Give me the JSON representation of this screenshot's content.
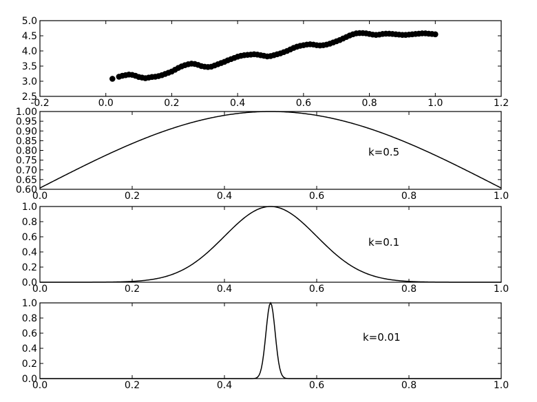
{
  "chart_data": [
    {
      "type": "scatter",
      "xlim": [
        -0.2,
        1.2
      ],
      "ylim": [
        2.5,
        5.0
      ],
      "xticks": [
        "-0.2",
        "0.0",
        "0.2",
        "0.4",
        "0.6",
        "0.8",
        "1.0",
        "1.2"
      ],
      "xtick_values": [
        -0.2,
        0.0,
        0.2,
        0.4,
        0.6,
        0.8,
        1.0,
        1.2
      ],
      "yticks": [
        "2.5",
        "3.0",
        "3.5",
        "4.0",
        "4.5",
        "5.0"
      ],
      "ytick_values": [
        2.5,
        3.0,
        3.5,
        4.0,
        4.5,
        5.0
      ],
      "grid": false,
      "series": [
        {
          "x": [
            0.02,
            0.04,
            0.05,
            0.06,
            0.07,
            0.08,
            0.09,
            0.1,
            0.11,
            0.12,
            0.13,
            0.14,
            0.15,
            0.16,
            0.17,
            0.18,
            0.19,
            0.2,
            0.21,
            0.22,
            0.23,
            0.24,
            0.25,
            0.26,
            0.27,
            0.28,
            0.29,
            0.3,
            0.31,
            0.32,
            0.33,
            0.34,
            0.35,
            0.36,
            0.37,
            0.38,
            0.39,
            0.4,
            0.41,
            0.42,
            0.43,
            0.44,
            0.45,
            0.46,
            0.47,
            0.48,
            0.49,
            0.5,
            0.51,
            0.52,
            0.53,
            0.54,
            0.55,
            0.56,
            0.57,
            0.58,
            0.59,
            0.6,
            0.61,
            0.62,
            0.63,
            0.64,
            0.65,
            0.66,
            0.67,
            0.68,
            0.69,
            0.7,
            0.71,
            0.72,
            0.73,
            0.74,
            0.75,
            0.76,
            0.77,
            0.78,
            0.79,
            0.8,
            0.81,
            0.82,
            0.83,
            0.84,
            0.85,
            0.86,
            0.87,
            0.88,
            0.89,
            0.9,
            0.91,
            0.92,
            0.93,
            0.94,
            0.95,
            0.96,
            0.97,
            0.98,
            0.99,
            1.0
          ],
          "y": [
            3.08,
            3.15,
            3.18,
            3.2,
            3.22,
            3.21,
            3.18,
            3.14,
            3.12,
            3.1,
            3.12,
            3.14,
            3.15,
            3.17,
            3.2,
            3.24,
            3.28,
            3.32,
            3.38,
            3.44,
            3.49,
            3.53,
            3.56,
            3.58,
            3.57,
            3.54,
            3.5,
            3.48,
            3.47,
            3.48,
            3.52,
            3.56,
            3.6,
            3.64,
            3.69,
            3.73,
            3.77,
            3.81,
            3.84,
            3.86,
            3.87,
            3.88,
            3.89,
            3.88,
            3.86,
            3.84,
            3.82,
            3.83,
            3.86,
            3.89,
            3.92,
            3.96,
            4.0,
            4.05,
            4.1,
            4.14,
            4.17,
            4.19,
            4.21,
            4.22,
            4.21,
            4.19,
            4.18,
            4.19,
            4.21,
            4.24,
            4.28,
            4.32,
            4.36,
            4.41,
            4.46,
            4.51,
            4.55,
            4.58,
            4.59,
            4.59,
            4.58,
            4.56,
            4.54,
            4.53,
            4.54,
            4.56,
            4.57,
            4.57,
            4.56,
            4.55,
            4.54,
            4.53,
            4.53,
            4.54,
            4.55,
            4.56,
            4.57,
            4.58,
            4.58,
            4.57,
            4.56,
            4.55
          ]
        }
      ]
    },
    {
      "type": "line",
      "xlim": [
        0.0,
        1.0
      ],
      "ylim": [
        0.6,
        1.0
      ],
      "xticks": [
        "0.0",
        "0.2",
        "0.4",
        "0.6",
        "0.8",
        "1.0"
      ],
      "xtick_values": [
        0.0,
        0.2,
        0.4,
        0.6,
        0.8,
        1.0
      ],
      "yticks": [
        "0.60",
        "0.65",
        "0.70",
        "0.75",
        "0.80",
        "0.85",
        "0.90",
        "0.95",
        "1.00"
      ],
      "ytick_values": [
        0.6,
        0.65,
        0.7,
        0.75,
        0.8,
        0.85,
        0.9,
        0.95,
        1.0
      ],
      "grid": false,
      "annotation": "k=0.5",
      "function": "exp(-(x-0.5)^2/(2*k^2))",
      "k": 0.5
    },
    {
      "type": "line",
      "xlim": [
        0.0,
        1.0
      ],
      "ylim": [
        0.0,
        1.0
      ],
      "xticks": [
        "0.0",
        "0.2",
        "0.4",
        "0.6",
        "0.8",
        "1.0"
      ],
      "xtick_values": [
        0.0,
        0.2,
        0.4,
        0.6,
        0.8,
        1.0
      ],
      "yticks": [
        "0.0",
        "0.2",
        "0.4",
        "0.6",
        "0.8",
        "1.0"
      ],
      "ytick_values": [
        0.0,
        0.2,
        0.4,
        0.6,
        0.8,
        1.0
      ],
      "grid": false,
      "annotation": "k=0.1",
      "function": "exp(-(x-0.5)^2/(2*k^2))",
      "k": 0.1
    },
    {
      "type": "line",
      "xlim": [
        0.0,
        1.0
      ],
      "ylim": [
        0.0,
        1.0
      ],
      "xticks": [
        "0.0",
        "0.2",
        "0.4",
        "0.6",
        "0.8",
        "1.0"
      ],
      "xtick_values": [
        0.0,
        0.2,
        0.4,
        0.6,
        0.8,
        1.0
      ],
      "yticks": [
        "0.0",
        "0.2",
        "0.4",
        "0.6",
        "0.8",
        "1.0"
      ],
      "ytick_values": [
        0.0,
        0.2,
        0.4,
        0.6,
        0.8,
        1.0
      ],
      "grid": false,
      "annotation": "k=0.01",
      "function": "exp(-(x-0.5)^2/(2*k^2))",
      "k": 0.01
    }
  ]
}
